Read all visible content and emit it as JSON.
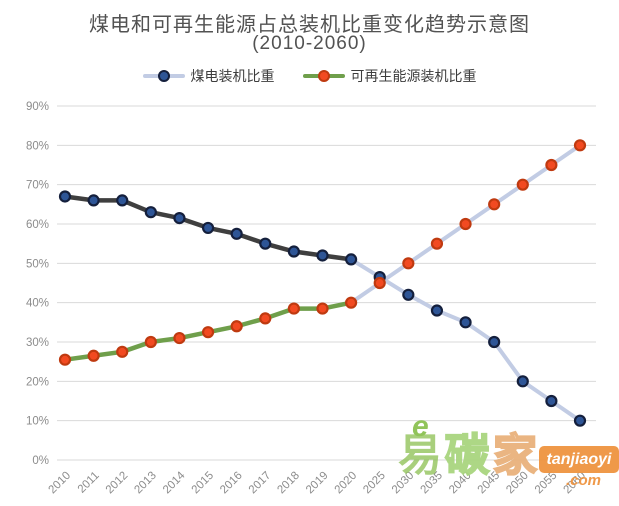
{
  "title": {
    "line1": "煤电和可再生能源占总装机比重变化趋势示意图",
    "line2": "(2010-2060)"
  },
  "colors": {
    "background": "#ffffff",
    "title_text": "#525252",
    "legend_text": "#3d3d3d",
    "grid_line": "#d9d9d9",
    "axis_text": "#8c8c8c"
  },
  "chart_data": {
    "type": "line",
    "title": "煤电和可再生能源占总装机比重变化趋势示意图 (2010-2060)",
    "categories": [
      "2010",
      "2011",
      "2012",
      "2013",
      "2014",
      "2015",
      "2016",
      "2017",
      "2018",
      "2019",
      "2020",
      "2025",
      "2030",
      "2035",
      "2040",
      "2045",
      "2050",
      "2055",
      "2060"
    ],
    "series": [
      {
        "name": "煤电装机比重",
        "values": [
          67,
          66,
          66,
          63,
          61.5,
          59,
          57.5,
          55,
          53,
          52,
          51,
          46.5,
          42,
          38,
          35,
          30,
          20,
          15,
          10
        ],
        "projection_from_index": 10,
        "line_color_historical": "#3f3f3f",
        "line_color_projection": "#c2cce4",
        "marker_fill": "#2e5596",
        "marker_stroke": "#141f3c"
      },
      {
        "name": "可再生能源装机比重",
        "values": [
          25.5,
          26.5,
          27.5,
          30,
          31,
          32.5,
          34,
          36,
          38.5,
          38.5,
          40,
          45,
          50,
          55,
          60,
          65,
          70,
          75,
          80
        ],
        "projection_from_index": 10,
        "line_color_historical": "#6f9f4b",
        "line_color_projection": "#c2cce4",
        "marker_fill": "#f24a21",
        "marker_stroke": "#bf3a10"
      }
    ],
    "y_ticks_percent": [
      0,
      10,
      20,
      30,
      40,
      50,
      60,
      70,
      80,
      90
    ],
    "ylim": [
      0,
      90
    ],
    "ylabel": "",
    "xlabel": "",
    "grid": true,
    "legend_position": "top",
    "historical_period": "2010-2020",
    "projection_period": "2020-2060"
  },
  "watermark": {
    "e_mark": "e",
    "characters": [
      "易",
      "碳",
      "家"
    ],
    "badge": "tanjiaoyi",
    "domain": ".com",
    "green": "#8cc152",
    "orange": "#ef9440"
  }
}
